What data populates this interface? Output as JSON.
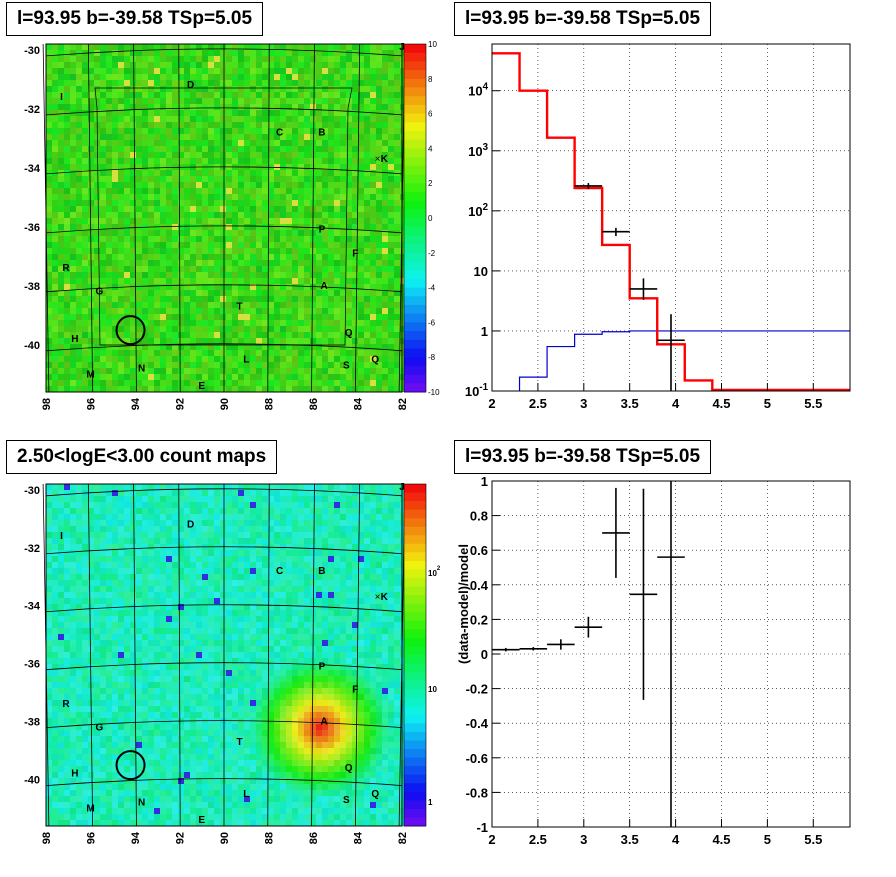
{
  "titles": {
    "map_top": "l=93.95 b=-39.58 TSp=5.05",
    "spectrum": "l=93.95 b=-39.58 TSp=5.05",
    "map_bottom": "2.50<logE<3.00 count maps",
    "residual": "l=93.95 b=-39.58 TSp=5.05"
  },
  "map_labels": [
    "D",
    "I",
    "C",
    "B",
    "K",
    "P",
    "F",
    "R",
    "A",
    "G",
    "T",
    "H",
    "Q",
    "L",
    "S",
    "Q",
    "M",
    "N",
    "E",
    "J"
  ],
  "chart_data": [
    {
      "type": "heatmap",
      "name": "residual-map",
      "x_ticks": [
        "98",
        "96",
        "94",
        "92",
        "90",
        "88",
        "86",
        "84",
        "82"
      ],
      "y_ticks": [
        "-30",
        "-32",
        "-34",
        "-36",
        "-38",
        "-40"
      ],
      "colorbar_ticks": [
        "10",
        "8",
        "6",
        "4",
        "2",
        "0",
        "-2",
        "-4",
        "-6",
        "-8",
        "-10"
      ],
      "xlim": [
        98,
        82
      ],
      "ylim": [
        -41.6,
        -29.8
      ]
    },
    {
      "type": "line",
      "name": "spectrum",
      "x_ticks": [
        "2",
        "2.5",
        "3",
        "3.5",
        "4",
        "4.5",
        "5",
        "5.5"
      ],
      "y_ticks": [
        "10^-1",
        "1",
        "10",
        "10^2",
        "10^3",
        "10^4"
      ],
      "xlim": [
        2,
        5.9
      ],
      "ylim": [
        0.1,
        60000
      ],
      "ylog": true,
      "grid": true,
      "model_total": {
        "color": "#ff0000",
        "edges": [
          2.0,
          2.3,
          2.6,
          2.9,
          3.2,
          3.5,
          3.8,
          4.1,
          4.4,
          5.9
        ],
        "values": [
          42000,
          10000,
          1650,
          240,
          27,
          3.5,
          0.6,
          0.15,
          0.1
        ]
      },
      "model_source": {
        "color": "#0000cc",
        "edges": [
          2.3,
          2.6,
          2.9,
          3.2,
          3.5,
          3.8,
          5.9
        ],
        "values": [
          0.17,
          0.55,
          0.88,
          0.97,
          1.0,
          1.0
        ]
      },
      "data": {
        "x": [
          3.05,
          3.35,
          3.65,
          3.95
        ],
        "y": [
          260,
          45,
          5,
          0.7
        ],
        "xerr": [
          0.15,
          0.15,
          0.15,
          0.15
        ],
        "ylow": [
          230,
          38,
          3.3,
          0.1
        ],
        "yhigh": [
          290,
          52,
          7.5,
          1.9
        ]
      }
    },
    {
      "type": "heatmap",
      "name": "count-map",
      "x_ticks": [
        "98",
        "96",
        "94",
        "92",
        "90",
        "88",
        "86",
        "84",
        "82"
      ],
      "y_ticks": [
        "-30",
        "-32",
        "-34",
        "-36",
        "-38",
        "-40"
      ],
      "colorbar_ticks": [
        "10^2",
        "10",
        "1"
      ],
      "colorbar_log": true,
      "xlim": [
        98,
        82
      ],
      "ylim": [
        -41.6,
        -29.8
      ]
    },
    {
      "type": "scatter",
      "name": "residual-ratio",
      "ylabel": "(data-model)/model",
      "x_ticks": [
        "2",
        "2.5",
        "3",
        "3.5",
        "4",
        "4.5",
        "5",
        "5.5"
      ],
      "y_ticks": [
        "1",
        "0.8",
        "0.6",
        "0.4",
        "0.2",
        "0",
        "-0.2",
        "-0.4",
        "-0.6",
        "-0.8",
        "-1"
      ],
      "xlim": [
        2,
        5.9
      ],
      "ylim": [
        -1,
        1
      ],
      "grid": true,
      "x": [
        2.15,
        2.45,
        2.75,
        3.05,
        3.35,
        3.65,
        3.95
      ],
      "y": [
        0.025,
        0.03,
        0.055,
        0.155,
        0.7,
        0.345,
        0.56
      ],
      "xerr": [
        0.15,
        0.15,
        0.15,
        0.15,
        0.15,
        0.15,
        0.15
      ],
      "yerr_low": [
        0.01,
        0.01,
        0.03,
        0.06,
        0.26,
        0.61,
        1.56
      ],
      "yerr_high": [
        0.01,
        0.01,
        0.03,
        0.06,
        0.26,
        0.61,
        0.44
      ]
    }
  ]
}
